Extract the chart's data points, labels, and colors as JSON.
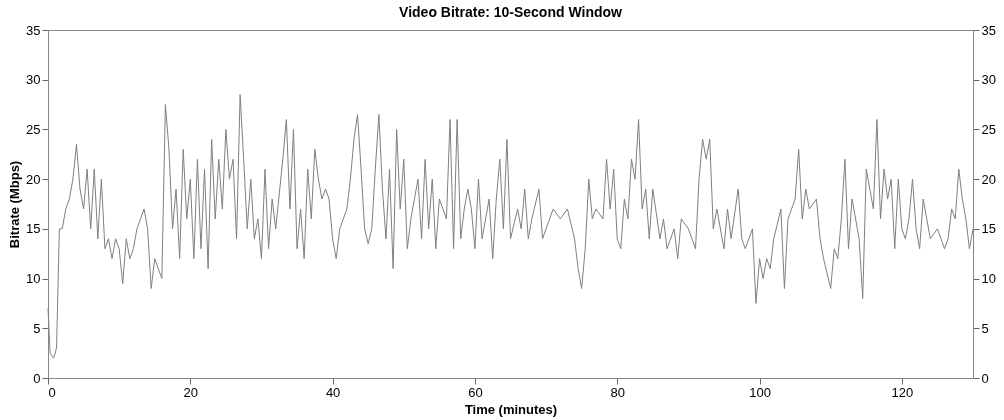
{
  "chart_data": {
    "type": "line",
    "title": "Video Bitrate: 10-Second Window",
    "xlabel": "Time (minutes)",
    "ylabel": "Bitrate (Mbps)",
    "xlim": [
      0,
      130
    ],
    "xticks": [
      0,
      20,
      40,
      60,
      80,
      100,
      120
    ],
    "ylim": [
      0,
      35
    ],
    "yticks": [
      0,
      5,
      10,
      15,
      20,
      25,
      30,
      35
    ],
    "y2lim": [
      0,
      35
    ],
    "y2ticks": [
      0,
      5,
      10,
      15,
      20,
      25,
      30,
      35
    ],
    "grid": false,
    "x": [
      0,
      0.3,
      0.8,
      1.2,
      1.6,
      2,
      2.5,
      3,
      3.5,
      4,
      4.5,
      5,
      5.5,
      6,
      6.5,
      7,
      7.5,
      8,
      8.5,
      9,
      9.5,
      10,
      10.5,
      11,
      11.5,
      12,
      12.5,
      13,
      13.5,
      14,
      14.5,
      15,
      15.5,
      16,
      16.5,
      17,
      17.5,
      18,
      18.5,
      19,
      19.5,
      20,
      20.5,
      21,
      21.5,
      22,
      22.5,
      23,
      23.5,
      24,
      24.5,
      25,
      25.5,
      26,
      26.5,
      27,
      27.5,
      28,
      28.5,
      29,
      29.5,
      30,
      30.5,
      31,
      31.5,
      32,
      33,
      33.5,
      34,
      34.5,
      35,
      35.5,
      36,
      36.5,
      37,
      37.5,
      38,
      38.5,
      39,
      39.5,
      40,
      40.5,
      41,
      42,
      42.5,
      43,
      43.5,
      44,
      44.5,
      45,
      45.5,
      46,
      46.5,
      47,
      47.5,
      48,
      48.5,
      49,
      49.5,
      50,
      50.5,
      51,
      52,
      52.5,
      53,
      53.5,
      54,
      54.5,
      55,
      56,
      56.5,
      57,
      57.5,
      58,
      58.5,
      59,
      59.5,
      60,
      60.5,
      61,
      62,
      62.5,
      63,
      63.5,
      64,
      64.5,
      65,
      66,
      66.5,
      67,
      67.5,
      68,
      69,
      69.5,
      70,
      71,
      72,
      73,
      74,
      74.5,
      75,
      75.5,
      76,
      76.5,
      77,
      78,
      78.5,
      79,
      79.5,
      80,
      80.5,
      81,
      81.5,
      82,
      82.5,
      83,
      83.5,
      84,
      84.5,
      85,
      86,
      86.5,
      87,
      88,
      88.5,
      89,
      90,
      91,
      91.5,
      92,
      92.5,
      93,
      93.5,
      94,
      95,
      95.5,
      96,
      97,
      97.5,
      98,
      99,
      99.5,
      100,
      100.5,
      101,
      101.5,
      102,
      103,
      103.5,
      104,
      105,
      105.5,
      106,
      106.5,
      107,
      108,
      108.5,
      109,
      110,
      110.5,
      111,
      111.5,
      112,
      112.5,
      113,
      114,
      114.5,
      115,
      116,
      116.5,
      117,
      117.5,
      118,
      118.5,
      119,
      119.5,
      120,
      120.5,
      121,
      121.5,
      122,
      122.5,
      123,
      124,
      125,
      126,
      126.5,
      127,
      127.5,
      128,
      128.5,
      129,
      129.5,
      130
    ],
    "series": [
      {
        "color": "#808080",
        "values": [
          7,
          2.5,
          2,
          3,
          15,
          15,
          17,
          18,
          20,
          23.5,
          19,
          17,
          21,
          15,
          21,
          14,
          20,
          13,
          14,
          12,
          14,
          13,
          9.5,
          14,
          12,
          13,
          15,
          16,
          17,
          15,
          9,
          12,
          11,
          10,
          27.5,
          23,
          15,
          19,
          12,
          23,
          16,
          20,
          12,
          22,
          13,
          21,
          11,
          24,
          16,
          22,
          17,
          25,
          20,
          22,
          14,
          28.5,
          22,
          15,
          20,
          14,
          16,
          12,
          21,
          13,
          18,
          15,
          22,
          26,
          17,
          25,
          13,
          17,
          12,
          21,
          16,
          23,
          20,
          18,
          19,
          18,
          14,
          12,
          15,
          17,
          20,
          24,
          26.5,
          21,
          15,
          13.5,
          15,
          21,
          26.5,
          19,
          14,
          21,
          11,
          25,
          17,
          22,
          13,
          16,
          20,
          14,
          22,
          15,
          20,
          13,
          18,
          16,
          26,
          13,
          26,
          14,
          17,
          19,
          17,
          13,
          20,
          14,
          18,
          12,
          18,
          22,
          15,
          24,
          14,
          17,
          15,
          19,
          14,
          16,
          19,
          14,
          15,
          17,
          16,
          17,
          14,
          11,
          9,
          13,
          20,
          16,
          17,
          16,
          22,
          17,
          21,
          14,
          13,
          18,
          16,
          22,
          20,
          26,
          17,
          19,
          14,
          19,
          14,
          16,
          13,
          15,
          12,
          16,
          15,
          13,
          20,
          24,
          22,
          24,
          15,
          17,
          13,
          17,
          14,
          19,
          14,
          13,
          15,
          7.5,
          12,
          10,
          12,
          11,
          14,
          17,
          9,
          16,
          18,
          23,
          16,
          19,
          17,
          18,
          14,
          12,
          9,
          13,
          12,
          16,
          22,
          13,
          18,
          14,
          8,
          21,
          17,
          26,
          16,
          21,
          18,
          20,
          13,
          20,
          15,
          14,
          16,
          20,
          15,
          13,
          18,
          14,
          15,
          13,
          14,
          17,
          16,
          21,
          18,
          16,
          13,
          15
        ]
      }
    ]
  }
}
